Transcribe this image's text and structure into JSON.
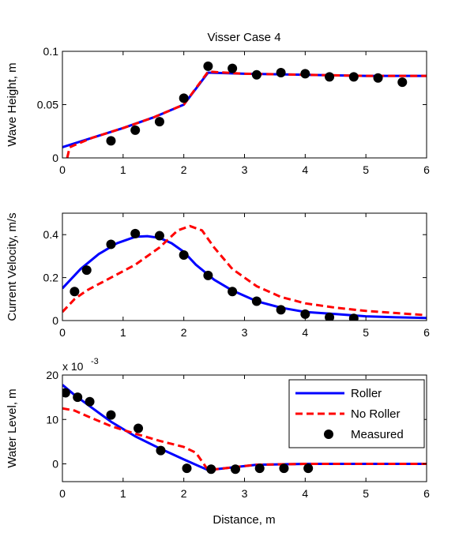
{
  "figure": {
    "title": "Visser Case 4",
    "xlabel": "Distance, m"
  },
  "colors": {
    "roller": "#0000ff",
    "no_roller": "#ff0000",
    "measured": "#000000"
  },
  "legend": {
    "items": [
      "Roller",
      "No Roller",
      "Measured"
    ]
  },
  "chart_data": [
    {
      "type": "line",
      "title": "Visser Case 4",
      "xlabel": "",
      "ylabel": "Wave Height, m",
      "xlim": [
        0,
        6
      ],
      "ylim": [
        0,
        0.1
      ],
      "xticks": [
        "0",
        "1",
        "2",
        "3",
        "4",
        "5",
        "6"
      ],
      "yticks": [
        "0",
        "0.05",
        "0.1"
      ],
      "ytick_values": [
        0,
        0.05,
        0.1
      ],
      "exponent_label": "",
      "series": [
        {
          "name": "Roller",
          "style": "solid",
          "x": [
            0,
            0.5,
            1.0,
            1.5,
            2.0,
            2.4,
            3.0,
            4.0,
            5.0,
            6.0
          ],
          "y": [
            0.01,
            0.019,
            0.028,
            0.038,
            0.05,
            0.08,
            0.079,
            0.078,
            0.077,
            0.077
          ]
        },
        {
          "name": "No Roller",
          "style": "dashed",
          "x": [
            0.08,
            0.12,
            0.2,
            0.5,
            1.0,
            1.5,
            2.0,
            2.4,
            3.0,
            4.0,
            5.0,
            6.0
          ],
          "y": [
            0,
            0.01,
            0.012,
            0.019,
            0.028,
            0.038,
            0.05,
            0.081,
            0.079,
            0.078,
            0.077,
            0.077
          ]
        },
        {
          "name": "Measured",
          "style": "markers",
          "x": [
            0.8,
            1.2,
            1.6,
            2.0,
            2.4,
            2.8,
            3.2,
            3.6,
            4.0,
            4.4,
            4.8,
            5.2,
            5.6
          ],
          "y": [
            0.016,
            0.026,
            0.034,
            0.056,
            0.086,
            0.084,
            0.078,
            0.08,
            0.079,
            0.076,
            0.076,
            0.075,
            0.071
          ]
        }
      ]
    },
    {
      "type": "line",
      "title": "",
      "xlabel": "",
      "ylabel": "Current Velocity, m/s",
      "xlim": [
        0,
        6
      ],
      "ylim": [
        0,
        0.5
      ],
      "xticks": [
        "0",
        "1",
        "2",
        "3",
        "4",
        "5",
        "6"
      ],
      "yticks": [
        "0",
        "0.2",
        "0.4"
      ],
      "ytick_values": [
        0,
        0.2,
        0.4
      ],
      "exponent_label": "",
      "series": [
        {
          "name": "Roller",
          "style": "solid",
          "x": [
            0,
            0.3,
            0.6,
            0.9,
            1.2,
            1.4,
            1.6,
            1.8,
            2.0,
            2.2,
            2.5,
            2.8,
            3.2,
            3.6,
            4.0,
            4.5,
            5.0,
            5.5,
            6.0
          ],
          "y": [
            0.15,
            0.24,
            0.31,
            0.36,
            0.39,
            0.393,
            0.385,
            0.36,
            0.32,
            0.26,
            0.19,
            0.14,
            0.09,
            0.06,
            0.04,
            0.03,
            0.02,
            0.015,
            0.012
          ]
        },
        {
          "name": "No Roller",
          "style": "dashed",
          "x": [
            0,
            0.2,
            0.4,
            0.8,
            1.2,
            1.6,
            1.9,
            2.1,
            2.3,
            2.5,
            2.8,
            3.2,
            3.6,
            4.0,
            4.5,
            5.0,
            5.5,
            6.0
          ],
          "y": [
            0.04,
            0.1,
            0.14,
            0.2,
            0.26,
            0.34,
            0.42,
            0.44,
            0.42,
            0.34,
            0.24,
            0.16,
            0.11,
            0.08,
            0.06,
            0.045,
            0.035,
            0.025
          ]
        },
        {
          "name": "Measured",
          "style": "markers",
          "x": [
            0.2,
            0.4,
            0.8,
            1.2,
            1.6,
            2.0,
            2.4,
            2.8,
            3.2,
            3.6,
            4.0,
            4.4,
            4.8
          ],
          "y": [
            0.135,
            0.235,
            0.355,
            0.405,
            0.395,
            0.305,
            0.21,
            0.135,
            0.09,
            0.05,
            0.03,
            0.015,
            0.01
          ]
        }
      ]
    },
    {
      "type": "line",
      "title": "",
      "xlabel": "Distance, m",
      "ylabel": "Water Level, m",
      "xlim": [
        0,
        6
      ],
      "ylim": [
        -0.004,
        0.02
      ],
      "xticks": [
        "0",
        "1",
        "2",
        "3",
        "4",
        "5",
        "6"
      ],
      "yticks": [
        "0",
        "10",
        "20"
      ],
      "ytick_values": [
        0,
        0.01,
        0.02
      ],
      "exponent_label": "x 10",
      "exponent_sup": "-3",
      "legend_position": "top-right",
      "series": [
        {
          "name": "Roller",
          "style": "solid",
          "x": [
            0,
            0.2,
            0.4,
            0.8,
            1.2,
            1.6,
            2.0,
            2.4,
            2.8,
            3.2,
            4.0,
            5.0,
            6.0
          ],
          "y": [
            0.0178,
            0.0155,
            0.0135,
            0.0095,
            0.0062,
            0.0035,
            0.001,
            -0.0014,
            -0.0008,
            -0.0002,
            0,
            0,
            0
          ]
        },
        {
          "name": "No Roller",
          "style": "dashed",
          "x": [
            0,
            0.2,
            0.4,
            0.8,
            1.2,
            1.6,
            2.0,
            2.2,
            2.4,
            2.8,
            3.2,
            4.0,
            5.0,
            6.0
          ],
          "y": [
            0.0125,
            0.012,
            0.0108,
            0.0085,
            0.0068,
            0.0052,
            0.0038,
            0.0025,
            -0.0014,
            -0.0008,
            -0.0002,
            0,
            0,
            0
          ]
        },
        {
          "name": "Measured",
          "style": "markers",
          "x": [
            0.05,
            0.25,
            0.45,
            0.8,
            1.25,
            1.62,
            2.05,
            2.45,
            2.85,
            3.25,
            3.65,
            4.05
          ],
          "y": [
            0.016,
            0.015,
            0.014,
            0.011,
            0.008,
            0.003,
            -0.001,
            -0.0012,
            -0.0012,
            -0.001,
            -0.001,
            -0.001
          ]
        }
      ]
    }
  ]
}
